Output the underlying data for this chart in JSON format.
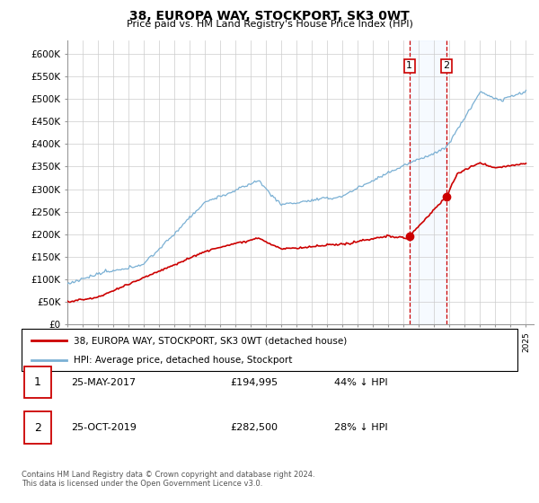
{
  "title": "38, EUROPA WAY, STOCKPORT, SK3 0WT",
  "subtitle": "Price paid vs. HM Land Registry's House Price Index (HPI)",
  "ylim": [
    0,
    630000
  ],
  "purchase_color": "#cc0000",
  "hpi_color": "#7ab0d4",
  "vline_color": "#cc0000",
  "vshade_color": "#ddeeff",
  "purchase1_year": 2017.38,
  "purchase1_price": 194995,
  "purchase2_year": 2019.8,
  "purchase2_price": 282500,
  "legend_label1": "38, EUROPA WAY, STOCKPORT, SK3 0WT (detached house)",
  "legend_label2": "HPI: Average price, detached house, Stockport",
  "table_row1": [
    "1",
    "25-MAY-2017",
    "£194,995",
    "44% ↓ HPI"
  ],
  "table_row2": [
    "2",
    "25-OCT-2019",
    "£282,500",
    "28% ↓ HPI"
  ],
  "footer": "Contains HM Land Registry data © Crown copyright and database right 2024.\nThis data is licensed under the Open Government Licence v3.0.",
  "background_color": "#ffffff",
  "grid_color": "#cccccc"
}
